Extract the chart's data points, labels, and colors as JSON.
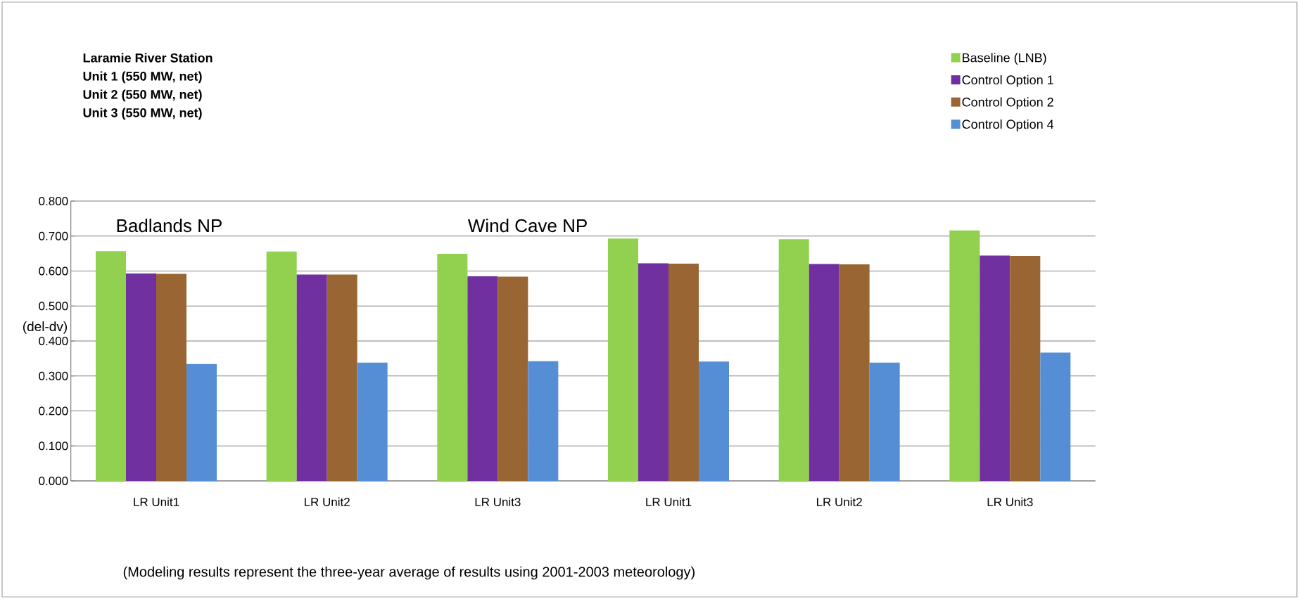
{
  "chart_data": {
    "type": "bar",
    "title": "Laramie River Station",
    "annotations": [
      "Unit 1 (550 MW, net)",
      "Unit 2 (550 MW, net)",
      "Unit 3 (550 MW, net)",
      "Badlands NP",
      "Wind Cave NP",
      "(Modeling results represent the three-year average of results using 2001-2003 meteorology)"
    ],
    "ylabel": "(del-dv)",
    "categories": [
      "LR Unit1",
      "LR Unit2",
      "LR Unit3",
      "LR Unit1",
      "LR Unit2",
      "LR Unit3"
    ],
    "series": [
      {
        "name": "Baseline (LNB)",
        "color": "#92d050",
        "values": [
          0.657,
          0.656,
          0.649,
          0.693,
          0.691,
          0.716
        ]
      },
      {
        "name": "Control Option 1",
        "color": "#7030a0",
        "values": [
          0.593,
          0.59,
          0.585,
          0.622,
          0.62,
          0.644
        ]
      },
      {
        "name": "Control Option 2",
        "color": "#996633",
        "values": [
          0.592,
          0.59,
          0.584,
          0.621,
          0.619,
          0.643
        ]
      },
      {
        "name": "Control Option 4",
        "color": "#558ed5",
        "values": [
          0.334,
          0.338,
          0.342,
          0.341,
          0.338,
          0.367
        ]
      }
    ],
    "ylim": [
      0,
      0.8
    ],
    "yticks": [
      {
        "value": 0,
        "label": "0.000"
      },
      {
        "value": 0.1,
        "label": "0.100"
      },
      {
        "value": 0.2,
        "label": "0.200"
      },
      {
        "value": 0.3,
        "label": "0.300"
      },
      {
        "value": 0.4,
        "label": "0.400"
      },
      {
        "value": 0.5,
        "label": "0.500"
      },
      {
        "value": 0.6,
        "label": "0.600"
      },
      {
        "value": 0.7,
        "label": "0.700"
      },
      {
        "value": 0.8,
        "label": "0.800"
      }
    ],
    "grid": "y",
    "legend": "top right"
  }
}
